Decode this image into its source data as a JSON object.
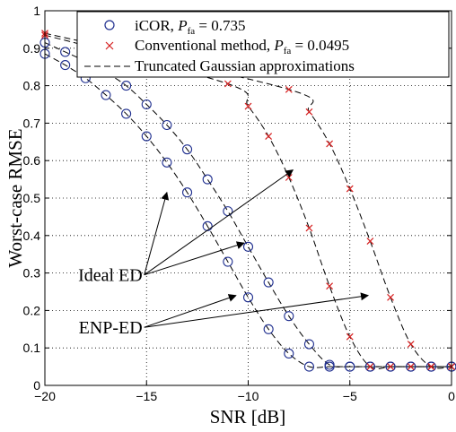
{
  "chart_data": {
    "type": "line",
    "xlabel": "SNR [dB]",
    "ylabel": "Worst-case RMSE",
    "xlim": [
      -20,
      0
    ],
    "ylim": [
      0,
      1
    ],
    "xticks": [
      -20,
      -15,
      -10,
      -5,
      0
    ],
    "yticks": [
      0,
      0.1,
      0.2,
      0.3,
      0.4,
      0.5,
      0.6,
      0.7,
      0.8,
      0.9,
      1
    ],
    "grid": true,
    "legend_position": "top-right",
    "legend": [
      {
        "marker": "circle",
        "label_main": "iCOR, ",
        "label_p": "P",
        "label_sub": "fa",
        "label_value": " = 0.735",
        "color": "#1f2f8f"
      },
      {
        "marker": "cross",
        "label_main": "Conventional method, ",
        "label_p": "P",
        "label_sub": "fa",
        "label_value": " = 0.0495",
        "color": "#d62020"
      },
      {
        "marker": "dashed",
        "label_main": "Truncated Gaussian approximations",
        "color": "#000000"
      }
    ],
    "series": [
      {
        "marker": "circle",
        "color": "#1f2f8f",
        "x": [
          -20,
          -19,
          -18,
          -17,
          -16,
          -15,
          -14,
          -13,
          -12,
          -11,
          -10,
          -9,
          -8,
          -7,
          -6,
          -5,
          -4,
          -3,
          -2,
          -1,
          0
        ],
        "y": [
          0.885,
          0.855,
          0.82,
          0.775,
          0.725,
          0.665,
          0.595,
          0.515,
          0.425,
          0.33,
          0.235,
          0.15,
          0.085,
          0.05,
          0.05,
          0.05,
          0.05,
          0.05,
          0.05,
          0.05,
          0.05
        ]
      },
      {
        "marker": "circle",
        "color": "#1f2f8f",
        "x": [
          -20,
          -19,
          -18,
          -17,
          -16,
          -15,
          -14,
          -13,
          -12,
          -11,
          -10,
          -9,
          -8,
          -7,
          -6,
          -5,
          -4,
          -3,
          -2,
          -1,
          0
        ],
        "y": [
          0.915,
          0.89,
          0.865,
          0.835,
          0.8,
          0.75,
          0.695,
          0.63,
          0.55,
          0.465,
          0.37,
          0.275,
          0.185,
          0.11,
          0.055,
          0.05,
          0.05,
          0.05,
          0.05,
          0.05,
          0.05
        ]
      },
      {
        "marker": "cross",
        "color": "#d62020",
        "x": [
          -20,
          -11,
          -10,
          -9,
          -8,
          -7,
          -6,
          -5,
          -4,
          -3,
          -2,
          -1,
          0
        ],
        "y": [
          0.935,
          0.805,
          0.745,
          0.665,
          0.555,
          0.42,
          0.265,
          0.13,
          0.05,
          0.05,
          0.05,
          0.05,
          0.05
        ]
      },
      {
        "marker": "cross",
        "color": "#d62020",
        "x": [
          -20,
          -8,
          -7,
          -6,
          -5,
          -4,
          -3,
          -2,
          -1,
          0
        ],
        "y": [
          0.94,
          0.79,
          0.73,
          0.645,
          0.525,
          0.385,
          0.235,
          0.11,
          0.05,
          0.05
        ]
      }
    ],
    "annotations": [
      {
        "text": "Ideal ED",
        "label_at": [
          -15.2,
          0.295
        ],
        "arrows_to": [
          [
            -14,
            0.515
          ],
          [
            -10.2,
            0.38
          ],
          [
            -7.8,
            0.575
          ]
        ]
      },
      {
        "text": "ENP-ED",
        "label_at": [
          -15.2,
          0.155
        ],
        "arrows_to": [
          [
            -10.6,
            0.24
          ],
          [
            -4.1,
            0.24
          ]
        ]
      }
    ]
  }
}
